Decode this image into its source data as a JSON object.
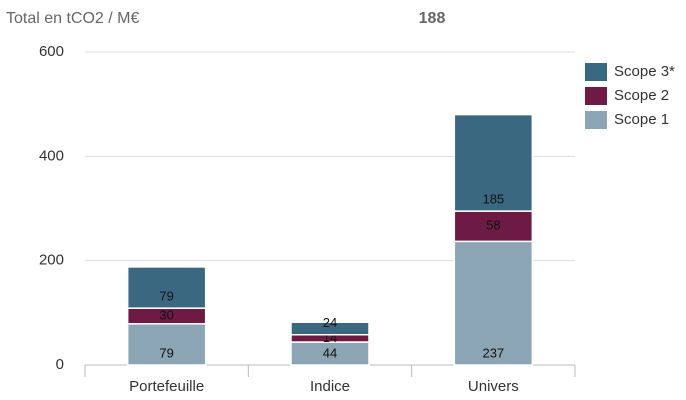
{
  "chart_data": {
    "type": "stacked_bar",
    "title": "Total en tCO2 / M€",
    "annotation": "188",
    "categories": [
      "Portefeuille",
      "Indice",
      "Univers"
    ],
    "series": [
      {
        "name": "Scope 1",
        "color": "#8ba5b4",
        "values": [
          79,
          44,
          237
        ]
      },
      {
        "name": "Scope 2",
        "color": "#6d1a45",
        "values": [
          30,
          14,
          58
        ]
      },
      {
        "name": "Scope 3*",
        "color": "#3a6880",
        "values": [
          79,
          24,
          185
        ]
      }
    ],
    "ylim": [
      0,
      600
    ],
    "yticks": [
      0,
      200,
      400,
      600
    ],
    "grid": true,
    "legend": "right"
  }
}
